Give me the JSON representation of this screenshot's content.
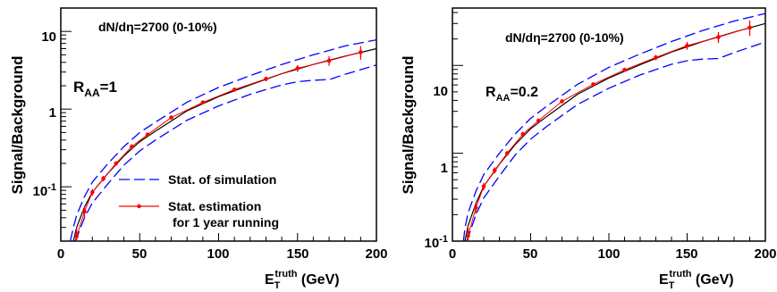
{
  "chart_data": [
    {
      "type": "line",
      "title": "",
      "xlabel": "E_T^truth (GeV)",
      "ylabel": "Signal/Background",
      "xlim": [
        0,
        200
      ],
      "ylim": [
        0.02,
        20
      ],
      "yscale": "log",
      "grid": false,
      "x_ticks": [
        "0",
        "50",
        "100",
        "150",
        "200"
      ],
      "y_ticks": [
        "10^-1",
        "1",
        "10"
      ],
      "annotations": {
        "energy": "dN/dη=2700 (0-10%)",
        "raa_main": "R",
        "raa_sub": "AA",
        "raa_value": "=1"
      },
      "legend": {
        "placement": "bottom-right",
        "entries": [
          {
            "label": "Stat. of simulation",
            "style": "blue-dashed"
          },
          {
            "label_line1": "Stat. estimation",
            "label_line2": "for 1 year running",
            "style": "red-points-with-errorbars"
          }
        ]
      },
      "series": [
        {
          "role": "central",
          "color": "#000000",
          "x": [
            8,
            10,
            15,
            20,
            30,
            40,
            50,
            60,
            80,
            100,
            120,
            140,
            160,
            180,
            200
          ],
          "y": [
            0.02,
            0.03,
            0.055,
            0.085,
            0.15,
            0.25,
            0.38,
            0.52,
            0.95,
            1.45,
            2.05,
            2.85,
            3.75,
            4.8,
            6.0
          ]
        },
        {
          "role": "upper_band",
          "color": "#0000ff",
          "x": [
            6,
            8,
            10,
            15,
            20,
            30,
            40,
            50,
            60,
            80,
            100,
            120,
            140,
            160,
            180,
            200
          ],
          "y": [
            0.02,
            0.03,
            0.043,
            0.075,
            0.115,
            0.2,
            0.33,
            0.5,
            0.68,
            1.23,
            1.9,
            2.7,
            3.75,
            5.0,
            6.5,
            7.8
          ]
        },
        {
          "role": "lower_band",
          "color": "#0000ff",
          "x": [
            9,
            10,
            15,
            20,
            30,
            40,
            50,
            60,
            80,
            100,
            120,
            140,
            150,
            160,
            170,
            180,
            200
          ],
          "y": [
            0.02,
            0.022,
            0.04,
            0.062,
            0.11,
            0.19,
            0.29,
            0.4,
            0.72,
            1.1,
            1.55,
            2.05,
            2.25,
            2.35,
            2.4,
            2.8,
            3.7
          ]
        },
        {
          "role": "stat_points",
          "color": "#ff0000",
          "x": [
            10,
            15,
            20,
            27,
            35,
            45,
            55,
            70,
            90,
            110,
            130,
            150,
            170,
            190
          ],
          "y": [
            0.023,
            0.048,
            0.085,
            0.128,
            0.2,
            0.33,
            0.47,
            0.78,
            1.22,
            1.78,
            2.45,
            3.35,
            4.2,
            5.4
          ],
          "err_rel": [
            0.3,
            0.15,
            0.1,
            0.08,
            0.06,
            0.05,
            0.04,
            0.04,
            0.04,
            0.05,
            0.07,
            0.1,
            0.14,
            0.2
          ]
        }
      ]
    },
    {
      "type": "line",
      "title": "",
      "xlabel": "E_T^truth (GeV)",
      "ylabel": "Signal/Background",
      "xlim": [
        0,
        200
      ],
      "ylim": [
        0.1,
        45
      ],
      "yscale": "log",
      "grid": false,
      "x_ticks": [
        "0",
        "50",
        "100",
        "150",
        "200"
      ],
      "y_ticks": [
        "10^-1",
        "1",
        "10"
      ],
      "annotations": {
        "energy": "dN/dη=2700 (0-10%)",
        "raa_main": "R",
        "raa_sub": "AA",
        "raa_value": "=0.2"
      },
      "series": [
        {
          "role": "central",
          "color": "#000000",
          "x": [
            8,
            10,
            15,
            20,
            30,
            40,
            50,
            60,
            80,
            100,
            120,
            140,
            160,
            180,
            200
          ],
          "y": [
            0.1,
            0.15,
            0.27,
            0.42,
            0.75,
            1.25,
            1.9,
            2.6,
            4.7,
            7.2,
            10.2,
            14.2,
            18.7,
            24.0,
            30.0
          ]
        },
        {
          "role": "upper_band",
          "color": "#0000ff",
          "x": [
            7,
            8,
            10,
            15,
            20,
            30,
            40,
            50,
            60,
            80,
            100,
            120,
            140,
            160,
            180,
            200
          ],
          "y": [
            0.1,
            0.14,
            0.21,
            0.37,
            0.57,
            1.0,
            1.65,
            2.5,
            3.4,
            6.1,
            9.5,
            13.5,
            18.7,
            25.0,
            32.0,
            39.0
          ]
        },
        {
          "role": "lower_band",
          "color": "#0000ff",
          "x": [
            9,
            10,
            15,
            20,
            30,
            40,
            50,
            60,
            80,
            100,
            120,
            140,
            150,
            160,
            170,
            180,
            200
          ],
          "y": [
            0.1,
            0.11,
            0.2,
            0.31,
            0.55,
            0.95,
            1.45,
            2.0,
            3.6,
            5.5,
            7.8,
            10.3,
            11.3,
            11.8,
            12.0,
            14.0,
            18.5
          ]
        },
        {
          "role": "stat_points",
          "color": "#ff0000",
          "x": [
            10,
            15,
            20,
            27,
            35,
            45,
            55,
            70,
            90,
            110,
            130,
            150,
            170,
            190
          ],
          "y": [
            0.115,
            0.24,
            0.42,
            0.64,
            1.0,
            1.65,
            2.35,
            3.9,
            6.1,
            8.9,
            12.3,
            16.8,
            21.0,
            27.0
          ],
          "err_rel": [
            0.3,
            0.15,
            0.1,
            0.08,
            0.06,
            0.05,
            0.04,
            0.04,
            0.04,
            0.05,
            0.07,
            0.1,
            0.14,
            0.2
          ]
        }
      ]
    }
  ]
}
